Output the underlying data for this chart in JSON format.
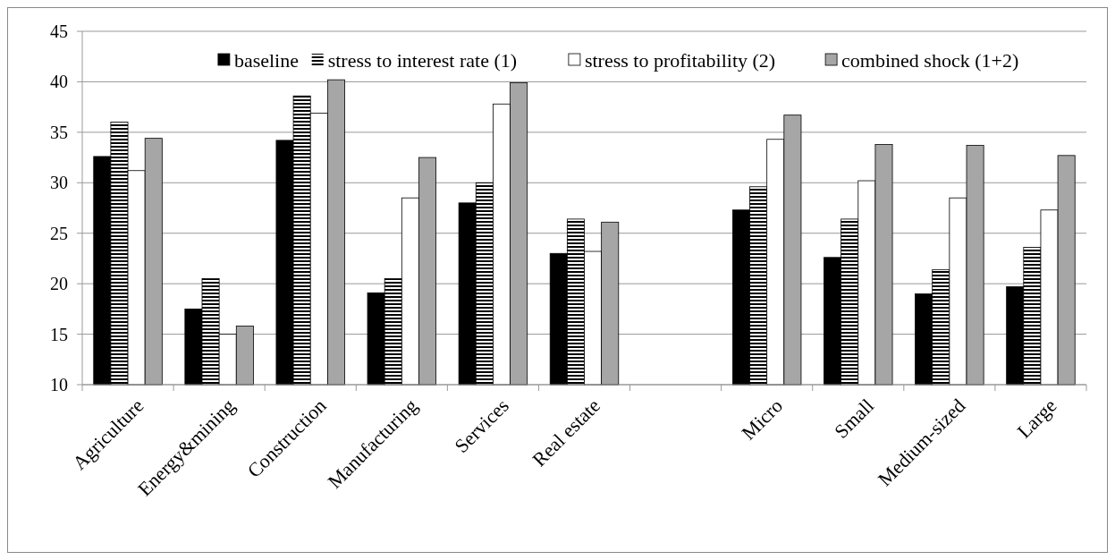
{
  "chart_data": {
    "type": "bar",
    "categories": [
      "Agriculture",
      "Energy&mining",
      "Construction",
      "Manufacturing",
      "Services",
      "Real estate",
      null,
      "Micro",
      "Small",
      "Medium-sized",
      "Large"
    ],
    "series": [
      {
        "name": "baseline",
        "color": "#000000",
        "values": [
          32.6,
          17.5,
          34.2,
          19.1,
          28.0,
          23.0,
          null,
          27.3,
          22.6,
          19.0,
          19.7
        ]
      },
      {
        "name": "stress to interest rate (1)",
        "color": "#000000",
        "values": [
          36.0,
          20.5,
          38.6,
          20.5,
          30.0,
          26.4,
          null,
          29.6,
          26.4,
          21.4,
          23.6
        ]
      },
      {
        "name": "stress to profitability (2)",
        "color": "#ffffff",
        "values": [
          31.2,
          15.0,
          36.9,
          28.5,
          37.8,
          23.2,
          null,
          34.3,
          30.2,
          28.5,
          27.3
        ]
      },
      {
        "name": "combined shock (1+2)",
        "color": "#a6a6a6",
        "values": [
          34.4,
          15.8,
          40.2,
          32.5,
          39.9,
          26.1,
          null,
          36.7,
          33.8,
          33.7,
          32.7
        ]
      }
    ],
    "ylim": [
      10,
      45
    ],
    "yticks": [
      10,
      15,
      20,
      25,
      30,
      35,
      40,
      45
    ],
    "grid": "y",
    "legend": "top"
  }
}
